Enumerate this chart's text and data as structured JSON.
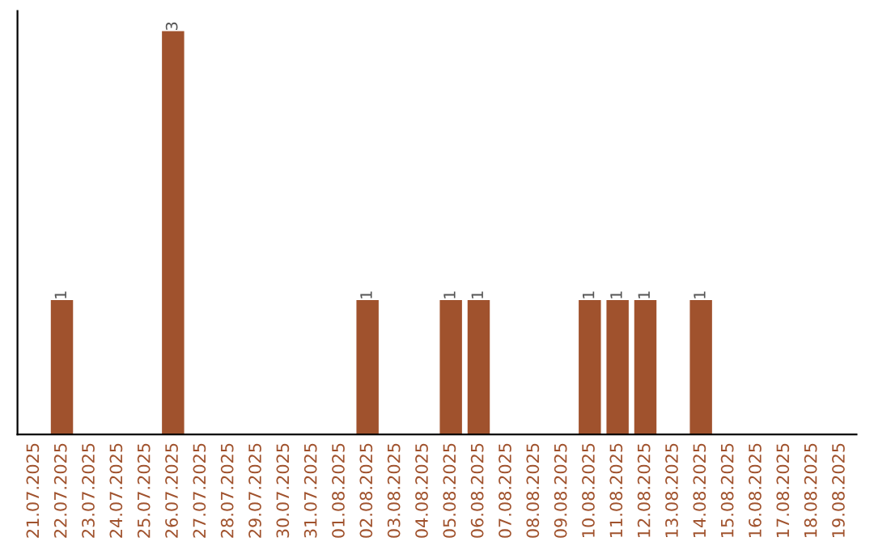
{
  "chart_data": {
    "type": "bar",
    "categories": [
      "21.07.2025",
      "22.07.2025",
      "23.07.2025",
      "24.07.2025",
      "25.07.2025",
      "26.07.2025",
      "27.07.2025",
      "28.07.2025",
      "29.07.2025",
      "30.07.2025",
      "31.07.2025",
      "01.08.2025",
      "02.08.2025",
      "03.08.2025",
      "04.08.2025",
      "05.08.2025",
      "06.08.2025",
      "07.08.2025",
      "08.08.2025",
      "09.08.2025",
      "10.08.2025",
      "11.08.2025",
      "12.08.2025",
      "13.08.2025",
      "14.08.2025",
      "15.08.2025",
      "16.08.2025",
      "17.08.2025",
      "18.08.2025",
      "19.08.2025"
    ],
    "values": [
      0,
      1,
      0,
      0,
      0,
      3,
      0,
      0,
      0,
      0,
      0,
      0,
      1,
      0,
      0,
      1,
      1,
      0,
      0,
      0,
      1,
      1,
      1,
      0,
      1,
      0,
      0,
      0,
      0,
      0
    ],
    "value_labels": [
      null,
      "1",
      null,
      null,
      null,
      "3",
      null,
      null,
      null,
      null,
      null,
      null,
      "1",
      null,
      null,
      "1",
      "1",
      null,
      null,
      null,
      "1",
      "1",
      "1",
      null,
      "1",
      null,
      null,
      null,
      null,
      null
    ],
    "color": "#a0522d",
    "grid": false,
    "legend": false
  }
}
